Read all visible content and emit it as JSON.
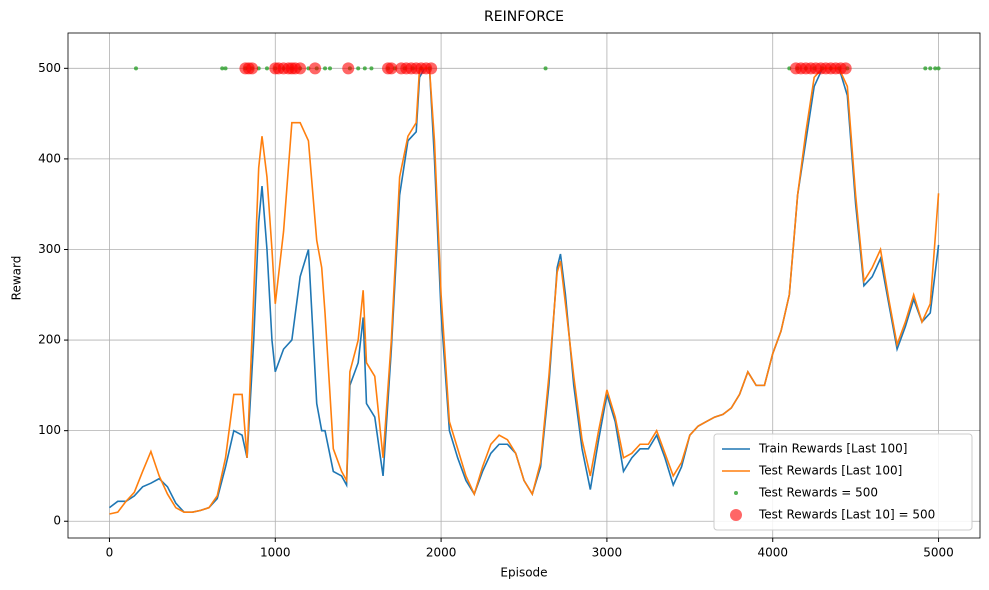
{
  "chart_data": {
    "type": "line",
    "title": "REINFORCE",
    "x_label": "Episode",
    "y_label": "Reward",
    "xlim": [
      -250,
      5250
    ],
    "ylim": [
      -18.5,
      539
    ],
    "xticks": [
      0,
      1000,
      2000,
      3000,
      4000,
      5000
    ],
    "yticks": [
      0,
      100,
      200,
      300,
      400,
      500
    ],
    "grid": true,
    "legend": "lower right",
    "x": [
      0,
      50,
      100,
      150,
      200,
      250,
      300,
      350,
      400,
      450,
      500,
      550,
      600,
      650,
      700,
      750,
      800,
      830,
      870,
      900,
      920,
      950,
      980,
      1000,
      1050,
      1100,
      1150,
      1200,
      1250,
      1280,
      1300,
      1350,
      1400,
      1430,
      1450,
      1500,
      1530,
      1550,
      1600,
      1650,
      1700,
      1750,
      1800,
      1850,
      1870,
      1900,
      1930,
      1960,
      2000,
      2050,
      2100,
      2150,
      2200,
      2250,
      2300,
      2350,
      2400,
      2450,
      2500,
      2550,
      2600,
      2650,
      2700,
      2720,
      2750,
      2800,
      2850,
      2900,
      2950,
      3000,
      3050,
      3100,
      3150,
      3200,
      3250,
      3300,
      3350,
      3400,
      3450,
      3500,
      3550,
      3600,
      3650,
      3700,
      3750,
      3800,
      3850,
      3900,
      3950,
      4000,
      4050,
      4100,
      4150,
      4200,
      4250,
      4300,
      4350,
      4400,
      4450,
      4500,
      4550,
      4600,
      4650,
      4700,
      4750,
      4800,
      4850,
      4900,
      4950,
      5000
    ],
    "series": [
      {
        "name": "Train Rewards [Last 100]",
        "type": "line",
        "color": "#1f77b4",
        "values": [
          15,
          22,
          22,
          28,
          38,
          42,
          47,
          38,
          20,
          10,
          10,
          12,
          15,
          25,
          60,
          100,
          95,
          70,
          200,
          330,
          370,
          300,
          200,
          165,
          190,
          200,
          270,
          300,
          130,
          100,
          100,
          55,
          50,
          40,
          150,
          175,
          225,
          130,
          115,
          50,
          190,
          360,
          420,
          430,
          490,
          500,
          500,
          400,
          230,
          100,
          70,
          45,
          30,
          55,
          75,
          85,
          85,
          75,
          45,
          30,
          60,
          150,
          280,
          295,
          250,
          150,
          80,
          35,
          90,
          140,
          110,
          55,
          70,
          80,
          80,
          95,
          70,
          40,
          60,
          95,
          105,
          110,
          115,
          118,
          125,
          140,
          165,
          150,
          150,
          185,
          210,
          250,
          360,
          420,
          480,
          500,
          500,
          500,
          470,
          350,
          260,
          270,
          290,
          240,
          190,
          215,
          245,
          220,
          230,
          305
        ]
      },
      {
        "name": "Test Rewards [Last 100]",
        "type": "line",
        "color": "#ff7f0e",
        "values": [
          8,
          10,
          22,
          32,
          55,
          77,
          50,
          30,
          15,
          10,
          10,
          12,
          15,
          28,
          70,
          140,
          140,
          70,
          250,
          390,
          425,
          380,
          300,
          240,
          320,
          440,
          440,
          420,
          310,
          280,
          230,
          80,
          55,
          45,
          165,
          200,
          255,
          175,
          160,
          70,
          200,
          380,
          425,
          440,
          500,
          500,
          500,
          420,
          250,
          110,
          80,
          50,
          30,
          60,
          85,
          95,
          90,
          75,
          45,
          30,
          65,
          160,
          275,
          287,
          240,
          160,
          90,
          50,
          100,
          145,
          115,
          70,
          75,
          85,
          85,
          100,
          75,
          50,
          65,
          95,
          105,
          110,
          115,
          118,
          125,
          140,
          165,
          150,
          150,
          185,
          210,
          250,
          360,
          430,
          490,
          500,
          500,
          500,
          480,
          360,
          265,
          280,
          300,
          245,
          195,
          220,
          250,
          220,
          240,
          362
        ]
      },
      {
        "name": "Test Rewards = 500",
        "type": "scatter",
        "color": "#2ca02c",
        "alpha": 0.8,
        "size": 2,
        "x": [
          160,
          680,
          700,
          820,
          860,
          900,
          950,
          1000,
          1050,
          1100,
          1150,
          1200,
          1250,
          1300,
          1330,
          1450,
          1500,
          1540,
          1580,
          1680,
          1720,
          1780,
          1830,
          1880,
          1930,
          2630,
          4100,
          4150,
          4200,
          4250,
          4300,
          4350,
          4400,
          4450,
          4920,
          4950,
          4980,
          5000
        ],
        "values": [
          500,
          500,
          500,
          500,
          500,
          500,
          500,
          500,
          500,
          500,
          500,
          500,
          500,
          500,
          500,
          500,
          500,
          500,
          500,
          500,
          500,
          500,
          500,
          500,
          500,
          500,
          500,
          500,
          500,
          500,
          500,
          500,
          500,
          500,
          500,
          500,
          500,
          500
        ]
      },
      {
        "name": "Test Rewards [Last 10] = 500",
        "type": "scatter",
        "color": "#ff0000",
        "alpha": 0.6,
        "size": 6,
        "x": [
          820,
          840,
          860,
          1000,
          1020,
          1050,
          1080,
          1100,
          1120,
          1150,
          1240,
          1440,
          1680,
          1700,
          1760,
          1790,
          1820,
          1850,
          1880,
          1910,
          1940,
          4140,
          4170,
          4200,
          4230,
          4260,
          4290,
          4320,
          4350,
          4380,
          4410,
          4440
        ],
        "values": [
          500,
          500,
          500,
          500,
          500,
          500,
          500,
          500,
          500,
          500,
          500,
          500,
          500,
          500,
          500,
          500,
          500,
          500,
          500,
          500,
          500,
          500,
          500,
          500,
          500,
          500,
          500,
          500,
          500,
          500,
          500,
          500
        ]
      }
    ]
  }
}
